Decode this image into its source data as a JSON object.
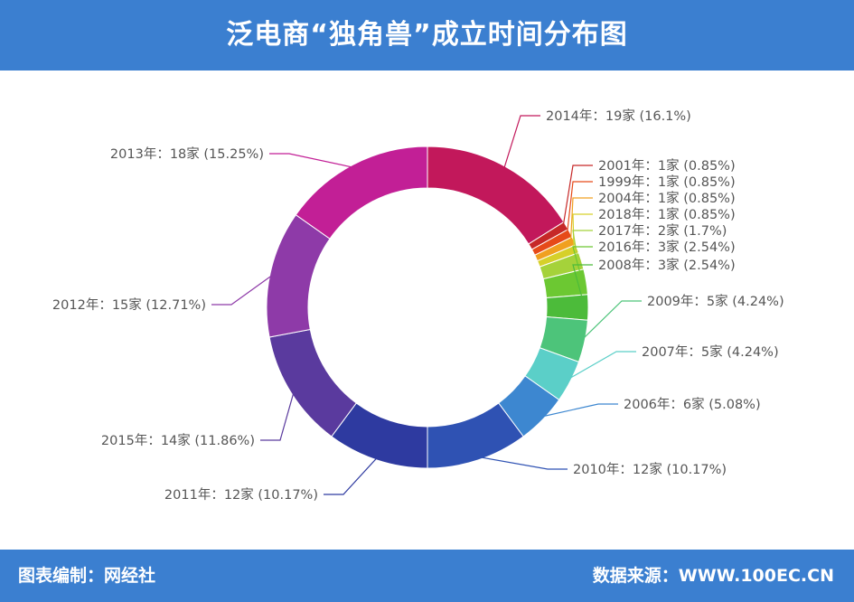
{
  "header": {
    "title": "泛电商“独角兽”成立时间分布图"
  },
  "footer": {
    "source_left": "图表编制：网经社",
    "source_right": "数据来源：WWW.100EC.CN"
  },
  "chart_data": {
    "type": "pie",
    "donut": true,
    "title": "泛电商“独角兽”成立时间分布图",
    "unit": "家",
    "slices": [
      {
        "category": "2014年",
        "value": 19,
        "percent": "16.1%",
        "label": "2014年：19家 (16.1%)",
        "color": "#c2185b"
      },
      {
        "category": "2001年",
        "value": 1,
        "percent": "0.85%",
        "label": "2001年：1家 (0.85%)",
        "color": "#c62828"
      },
      {
        "category": "1999年",
        "value": 1,
        "percent": "0.85%",
        "label": "1999年：1家 (0.85%)",
        "color": "#e64a19"
      },
      {
        "category": "2004年",
        "value": 1,
        "percent": "0.85%",
        "label": "2004年：1家 (0.85%)",
        "color": "#f0a020"
      },
      {
        "category": "2018年",
        "value": 1,
        "percent": "0.85%",
        "label": "2018年：1家 (0.85%)",
        "color": "#d6d02a"
      },
      {
        "category": "2017年",
        "value": 2,
        "percent": "1.7%",
        "label": "2017年：2家 (1.7%)",
        "color": "#a5d23a"
      },
      {
        "category": "2016年",
        "value": 3,
        "percent": "2.54%",
        "label": "2016年：3家 (2.54%)",
        "color": "#6cc832"
      },
      {
        "category": "2008年",
        "value": 3,
        "percent": "2.54%",
        "label": "2008年：3家 (2.54%)",
        "color": "#4cbb3a"
      },
      {
        "category": "2009年",
        "value": 5,
        "percent": "4.24%",
        "label": "2009年：5家 (4.24%)",
        "color": "#4dc47a"
      },
      {
        "category": "2007年",
        "value": 5,
        "percent": "4.24%",
        "label": "2007年：5家 (4.24%)",
        "color": "#5bcfc8"
      },
      {
        "category": "2006年",
        "value": 6,
        "percent": "5.08%",
        "label": "2006年：6家 (5.08%)",
        "color": "#3d87d0"
      },
      {
        "category": "2010年",
        "value": 12,
        "percent": "10.17%",
        "label": "2010年：12家 (10.17%)",
        "color": "#2f52b3"
      },
      {
        "category": "2011年",
        "value": 12,
        "percent": "10.17%",
        "label": "2011年：12家 (10.17%)",
        "color": "#2e3aa0"
      },
      {
        "category": "2015年",
        "value": 14,
        "percent": "11.86%",
        "label": "2015年：14家 (11.86%)",
        "color": "#5a3a9e"
      },
      {
        "category": "2012年",
        "value": 15,
        "percent": "12.71%",
        "label": "2012年：15家 (12.71%)",
        "color": "#8e3aa8"
      },
      {
        "category": "2013年",
        "value": 18,
        "percent": "15.25%",
        "label": "2013年：18家 (15.25%)",
        "color": "#c21f96"
      }
    ]
  }
}
